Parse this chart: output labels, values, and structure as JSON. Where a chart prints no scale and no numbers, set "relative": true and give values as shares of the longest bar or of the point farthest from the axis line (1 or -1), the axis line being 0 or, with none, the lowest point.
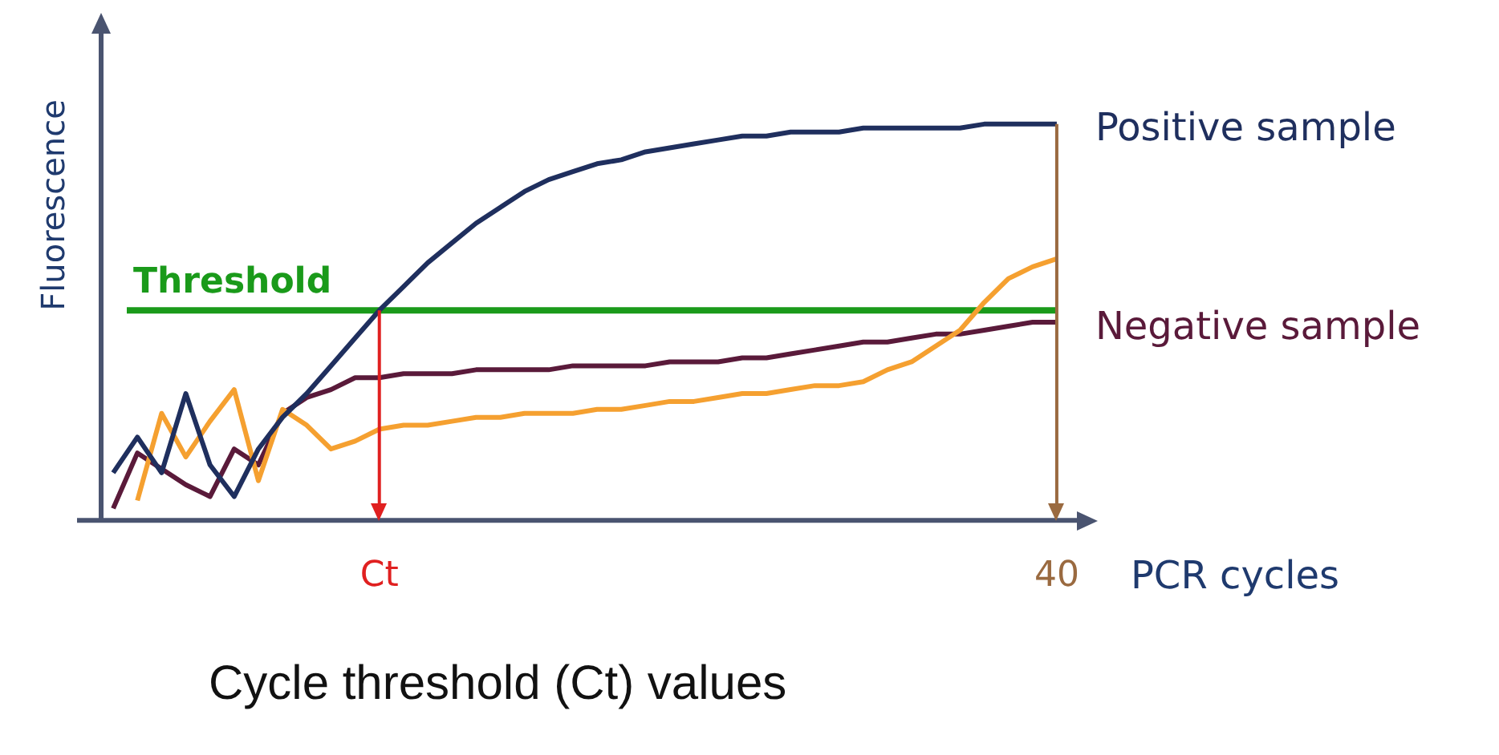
{
  "chart_data": {
    "type": "line",
    "title": "Cycle threshold (Ct) values",
    "xlabel": "PCR cycles",
    "ylabel": "Fluorescence",
    "relative": true,
    "marker": "none",
    "line_style": "solid",
    "grid": false,
    "legend": false,
    "categories": [
      null,
      null,
      null,
      null,
      null,
      null,
      null,
      null,
      null,
      null,
      null,
      "Ct",
      null,
      null,
      null,
      null,
      null,
      null,
      null,
      null,
      null,
      null,
      null,
      null,
      null,
      null,
      null,
      null,
      null,
      null,
      null,
      null,
      null,
      null,
      null,
      null,
      null,
      null,
      null,
      "40"
    ],
    "ref_lines": [
      {
        "axis": "y",
        "value": 0.53,
        "label": "Threshold",
        "color": "#1a9a1a"
      },
      {
        "axis": "x",
        "value": "Ct",
        "label": null,
        "color": "#e02020"
      },
      {
        "axis": "x",
        "value": "40",
        "label": null,
        "color": "#9a6a40"
      }
    ],
    "series": [
      {
        "name": "Positive sample",
        "color": "#1f2f5e",
        "values": [
          0.12,
          0.21,
          0.12,
          0.32,
          0.14,
          0.06,
          0.18,
          0.26,
          0.32,
          0.39,
          0.46,
          0.53,
          0.59,
          0.65,
          0.7,
          0.75,
          0.79,
          0.83,
          0.86,
          0.88,
          0.9,
          0.91,
          0.93,
          0.94,
          0.95,
          0.96,
          0.97,
          0.97,
          0.98,
          0.98,
          0.98,
          0.99,
          0.99,
          0.99,
          0.99,
          0.99,
          1,
          1,
          1,
          1
        ]
      },
      {
        "color": "#f5a030",
        "values": [
          null,
          0.05,
          0.27,
          0.16,
          0.25,
          0.33,
          0.1,
          0.28,
          0.24,
          0.18,
          0.2,
          0.23,
          0.24,
          0.24,
          0.25,
          0.26,
          0.26,
          0.27,
          0.27,
          0.27,
          0.28,
          0.28,
          0.29,
          0.3,
          0.3,
          0.31,
          0.32,
          0.32,
          0.33,
          0.34,
          0.34,
          0.35,
          0.38,
          0.4,
          0.44,
          0.48,
          0.55,
          0.61,
          0.64,
          0.66
        ]
      },
      {
        "name": "Negative sample",
        "color": "#5a1a3a",
        "values": [
          0.03,
          0.17,
          0.13,
          0.09,
          0.06,
          0.18,
          0.14,
          0.27,
          0.31,
          0.33,
          0.36,
          0.36,
          0.37,
          0.37,
          0.37,
          0.38,
          0.38,
          0.38,
          0.38,
          0.39,
          0.39,
          0.39,
          0.39,
          0.4,
          0.4,
          0.4,
          0.41,
          0.41,
          0.42,
          0.43,
          0.44,
          0.45,
          0.45,
          0.46,
          0.47,
          0.47,
          0.48,
          0.49,
          0.5,
          0.5
        ]
      }
    ]
  }
}
